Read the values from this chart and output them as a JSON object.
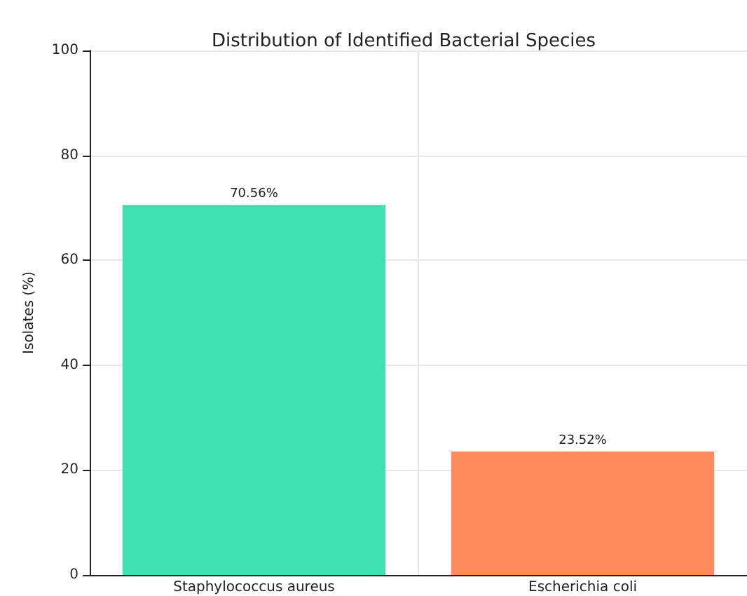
{
  "chart_data": {
    "type": "bar",
    "title": "Distribution of Identified Bacterial Species",
    "ylabel": "Isolates (%)",
    "categories": [
      "Staphylococcus aureus",
      "Escherichia coli"
    ],
    "values": [
      70.56,
      23.52
    ],
    "colors": [
      "#40e0b0",
      "#ff8a5c"
    ],
    "value_labels": [
      "70.56%",
      "23.52%"
    ],
    "ylim": [
      0,
      100
    ],
    "yticks": [
      0,
      20,
      40,
      60,
      80,
      100
    ],
    "grid": true
  }
}
